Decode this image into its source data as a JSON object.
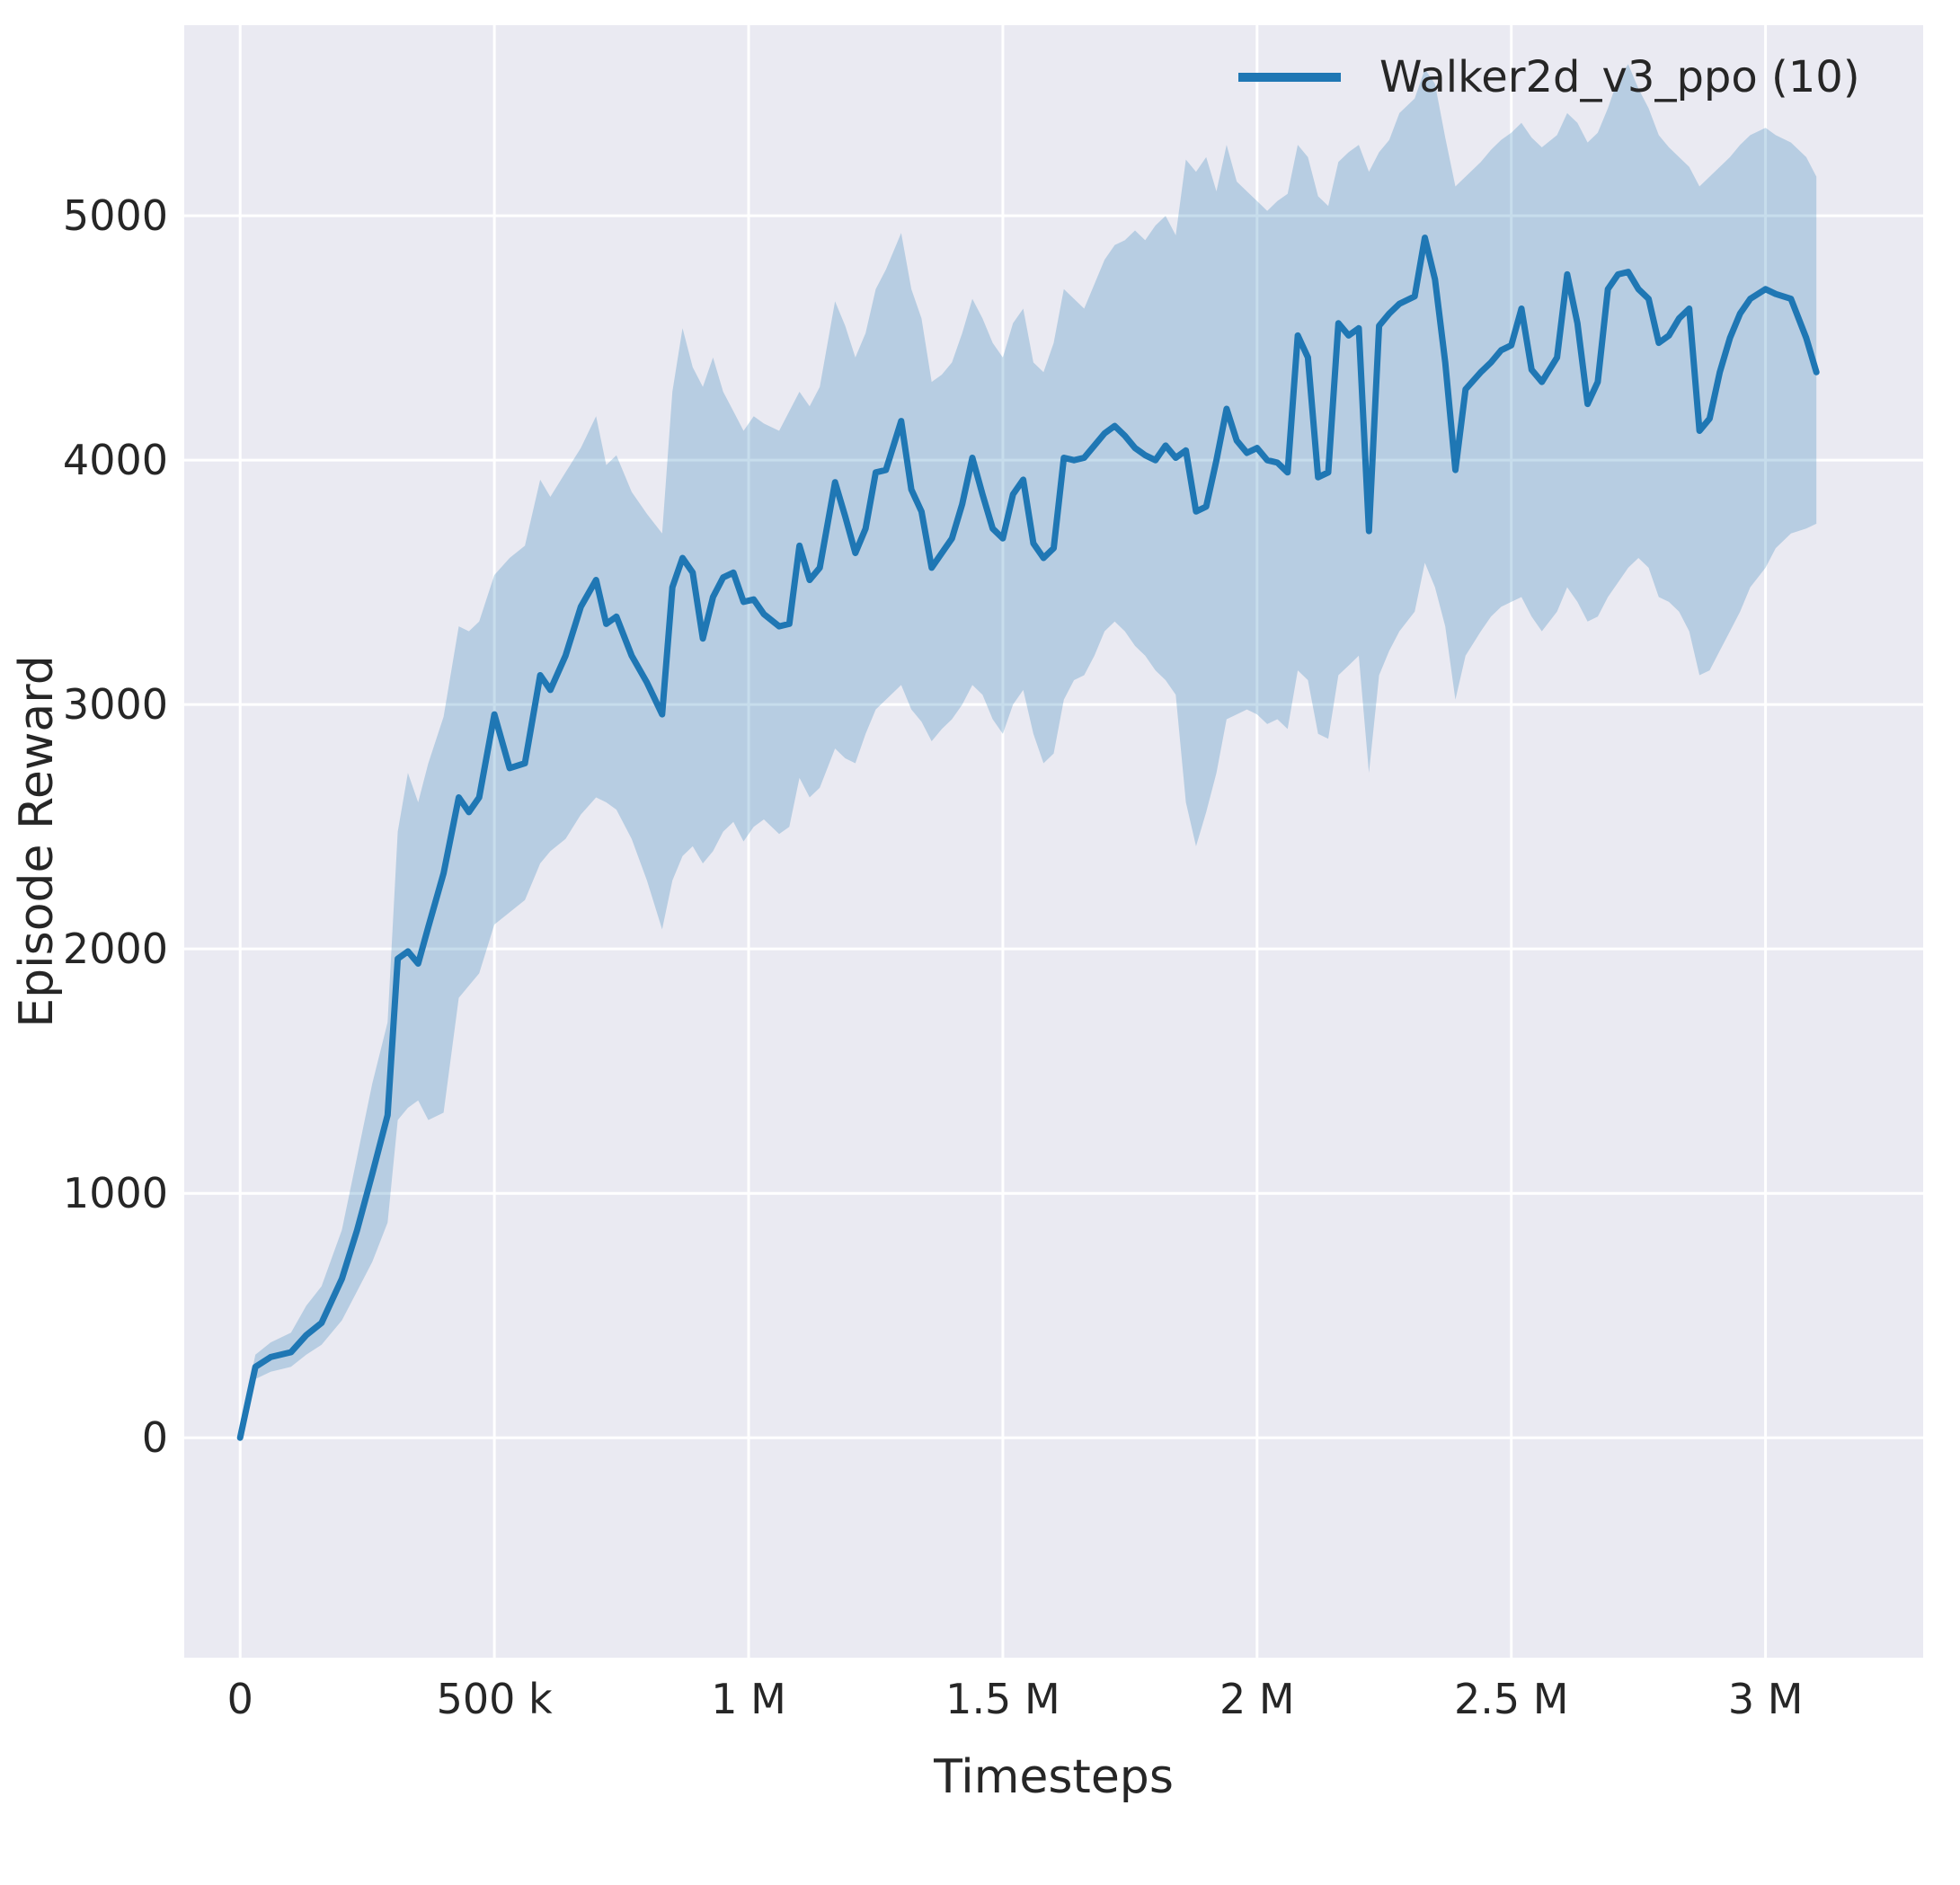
{
  "styles": {
    "figure_bg": "#ffffff",
    "panel_bg": "#eaeaf2",
    "grid_color": "#ffffff",
    "text_color": "#262626",
    "line_color": "#1f77b4",
    "band_color": "#1f77b4",
    "band_opacity": 0.25
  },
  "chart_data": {
    "type": "line",
    "title": "",
    "xlabel": "Timesteps",
    "ylabel": "Episode Reward",
    "grid": true,
    "legend_position": "upper right",
    "legend": [
      {
        "label": "Walker2d_v3_ppo (10)",
        "color": "#1f77b4"
      }
    ],
    "xlim": [
      -110000,
      3310000
    ],
    "ylim": [
      -900,
      5780
    ],
    "xticks": [
      {
        "v": 0,
        "label": "0"
      },
      {
        "v": 500000,
        "label": "500 k"
      },
      {
        "v": 1000000,
        "label": "1 M"
      },
      {
        "v": 1500000,
        "label": "1.5 M"
      },
      {
        "v": 2000000,
        "label": "2 M"
      },
      {
        "v": 2500000,
        "label": "2.5 M"
      },
      {
        "v": 3000000,
        "label": "3 M"
      }
    ],
    "yticks": [
      {
        "v": 0,
        "label": "0"
      },
      {
        "v": 1000,
        "label": "1000"
      },
      {
        "v": 2000,
        "label": "2000"
      },
      {
        "v": 3000,
        "label": "3000"
      },
      {
        "v": 4000,
        "label": "4000"
      },
      {
        "v": 5000,
        "label": "5000"
      }
    ],
    "series": [
      {
        "name": "Walker2d_v3_ppo (10)",
        "color": "#1f77b4",
        "line_width": 7,
        "x": [
          0,
          30000,
          60000,
          100000,
          130000,
          160000,
          200000,
          230000,
          260000,
          290000,
          310000,
          330000,
          350000,
          370000,
          400000,
          430000,
          450000,
          470000,
          500000,
          530000,
          560000,
          590000,
          610000,
          640000,
          670000,
          700000,
          720000,
          740000,
          770000,
          800000,
          830000,
          850000,
          870000,
          890000,
          910000,
          930000,
          950000,
          970000,
          990000,
          1010000,
          1030000,
          1060000,
          1080000,
          1100000,
          1120000,
          1140000,
          1170000,
          1190000,
          1210000,
          1230000,
          1250000,
          1270000,
          1300000,
          1320000,
          1340000,
          1360000,
          1380000,
          1400000,
          1420000,
          1440000,
          1460000,
          1480000,
          1500000,
          1520000,
          1540000,
          1560000,
          1580000,
          1600000,
          1620000,
          1640000,
          1660000,
          1680000,
          1700000,
          1720000,
          1740000,
          1760000,
          1780000,
          1800000,
          1820000,
          1840000,
          1860000,
          1880000,
          1900000,
          1920000,
          1940000,
          1960000,
          1980000,
          2000000,
          2020000,
          2040000,
          2060000,
          2080000,
          2100000,
          2120000,
          2140000,
          2160000,
          2180000,
          2200000,
          2220000,
          2240000,
          2260000,
          2280000,
          2310000,
          2330000,
          2350000,
          2370000,
          2390000,
          2410000,
          2440000,
          2460000,
          2480000,
          2500000,
          2520000,
          2540000,
          2560000,
          2590000,
          2610000,
          2630000,
          2650000,
          2670000,
          2690000,
          2710000,
          2730000,
          2750000,
          2770000,
          2790000,
          2810000,
          2830000,
          2850000,
          2870000,
          2890000,
          2910000,
          2930000,
          2950000,
          2970000,
          3000000,
          3020000,
          3050000,
          3080000,
          3100000
        ],
        "mean": [
          0,
          290,
          330,
          350,
          420,
          470,
          650,
          850,
          1080,
          1320,
          1960,
          1990,
          1940,
          2090,
          2310,
          2620,
          2560,
          2620,
          2960,
          2740,
          2760,
          3120,
          3060,
          3200,
          3400,
          3510,
          3330,
          3360,
          3200,
          3090,
          2960,
          3480,
          3600,
          3540,
          3270,
          3440,
          3520,
          3540,
          3420,
          3430,
          3370,
          3320,
          3330,
          3650,
          3510,
          3560,
          3910,
          3770,
          3620,
          3720,
          3950,
          3960,
          4160,
          3880,
          3790,
          3560,
          3620,
          3680,
          3820,
          4010,
          3860,
          3720,
          3680,
          3860,
          3920,
          3660,
          3600,
          3640,
          4010,
          4000,
          4010,
          4060,
          4110,
          4140,
          4100,
          4050,
          4020,
          4000,
          4060,
          4010,
          4040,
          3790,
          3810,
          4000,
          4210,
          4080,
          4030,
          4050,
          4000,
          3990,
          3950,
          4510,
          4420,
          3930,
          3950,
          4560,
          4510,
          4540,
          3710,
          4550,
          4600,
          4640,
          4670,
          4910,
          4740,
          4400,
          3960,
          4290,
          4360,
          4400,
          4450,
          4470,
          4620,
          4370,
          4320,
          4420,
          4760,
          4560,
          4230,
          4320,
          4700,
          4760,
          4770,
          4700,
          4660,
          4480,
          4510,
          4580,
          4620,
          4120,
          4170,
          4360,
          4500,
          4600,
          4660,
          4700,
          4680,
          4660,
          4500,
          4360
        ],
        "lower": [
          0,
          240,
          270,
          290,
          340,
          380,
          480,
          600,
          720,
          880,
          1300,
          1350,
          1380,
          1300,
          1330,
          1800,
          1850,
          1900,
          2100,
          2150,
          2200,
          2350,
          2400,
          2450,
          2550,
          2620,
          2600,
          2570,
          2450,
          2280,
          2080,
          2280,
          2380,
          2420,
          2350,
          2400,
          2480,
          2520,
          2440,
          2500,
          2530,
          2470,
          2500,
          2700,
          2620,
          2660,
          2820,
          2780,
          2760,
          2880,
          2980,
          3020,
          3080,
          2980,
          2930,
          2850,
          2900,
          2940,
          3000,
          3080,
          3040,
          2940,
          2880,
          3000,
          3060,
          2880,
          2760,
          2800,
          3020,
          3100,
          3120,
          3200,
          3300,
          3340,
          3300,
          3240,
          3200,
          3140,
          3100,
          3040,
          2600,
          2420,
          2560,
          2720,
          2940,
          2960,
          2980,
          2960,
          2920,
          2940,
          2900,
          3140,
          3100,
          2880,
          2860,
          3120,
          3160,
          3200,
          2720,
          3120,
          3220,
          3300,
          3380,
          3580,
          3480,
          3320,
          3020,
          3200,
          3300,
          3360,
          3400,
          3420,
          3440,
          3360,
          3300,
          3380,
          3480,
          3420,
          3340,
          3360,
          3440,
          3500,
          3560,
          3600,
          3560,
          3440,
          3420,
          3380,
          3300,
          3120,
          3140,
          3220,
          3300,
          3380,
          3480,
          3560,
          3640,
          3700,
          3720,
          3740
        ],
        "upper": [
          40,
          340,
          390,
          430,
          540,
          620,
          850,
          1150,
          1450,
          1700,
          2480,
          2720,
          2600,
          2760,
          2950,
          3320,
          3300,
          3340,
          3530,
          3600,
          3650,
          3920,
          3850,
          3950,
          4050,
          4180,
          3980,
          4020,
          3870,
          3780,
          3700,
          4280,
          4540,
          4380,
          4300,
          4420,
          4280,
          4200,
          4120,
          4180,
          4150,
          4120,
          4200,
          4280,
          4220,
          4300,
          4650,
          4550,
          4420,
          4520,
          4700,
          4780,
          4930,
          4700,
          4580,
          4320,
          4350,
          4400,
          4520,
          4660,
          4580,
          4480,
          4420,
          4560,
          4620,
          4400,
          4360,
          4480,
          4700,
          4660,
          4620,
          4720,
          4820,
          4880,
          4900,
          4940,
          4900,
          4960,
          5000,
          4920,
          5230,
          5180,
          5240,
          5100,
          5290,
          5140,
          5100,
          5060,
          5020,
          5060,
          5090,
          5290,
          5240,
          5080,
          5040,
          5220,
          5260,
          5290,
          5180,
          5260,
          5310,
          5420,
          5480,
          5600,
          5540,
          5320,
          5120,
          5160,
          5220,
          5270,
          5310,
          5340,
          5380,
          5320,
          5280,
          5330,
          5420,
          5380,
          5300,
          5340,
          5440,
          5560,
          5620,
          5520,
          5440,
          5330,
          5280,
          5240,
          5200,
          5120,
          5160,
          5200,
          5240,
          5290,
          5330,
          5360,
          5330,
          5300,
          5240,
          5160
        ]
      }
    ]
  }
}
